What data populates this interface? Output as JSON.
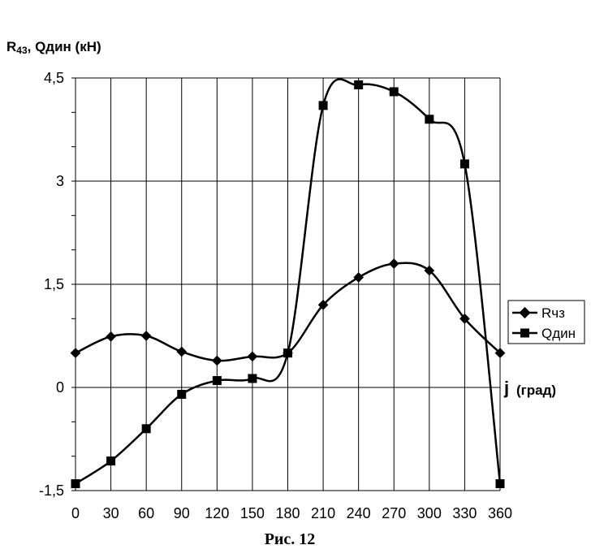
{
  "chart_data": {
    "type": "line",
    "ylabel_main": "R",
    "ylabel_sub": "43",
    "ylabel_rest": ", Qдин (кН)",
    "xlabel_symbol": "j",
    "xlabel_unit": "(град)",
    "caption": "Рис. 12",
    "x": [
      0,
      30,
      60,
      90,
      120,
      150,
      180,
      210,
      240,
      270,
      300,
      330,
      360
    ],
    "x_tick_labels": [
      "0",
      "30",
      "60",
      "90",
      "120",
      "150",
      "180",
      "210",
      "240",
      "270",
      "300",
      "330",
      "360"
    ],
    "y_ticks": [
      -1.5,
      0,
      1.5,
      3,
      4.5
    ],
    "y_tick_labels": [
      "-1,5",
      "0",
      "1,5",
      "3",
      "4,5"
    ],
    "xlim": [
      0,
      360
    ],
    "ylim": [
      -1.5,
      4.5
    ],
    "grid": true,
    "legend_position": "right",
    "series": [
      {
        "name": "Rчз",
        "marker": "diamond",
        "color": "#000000",
        "values": [
          0.5,
          0.74,
          0.75,
          0.52,
          0.39,
          0.45,
          0.5,
          1.2,
          1.6,
          1.8,
          1.7,
          1.0,
          0.5
        ]
      },
      {
        "name": "Qдин",
        "marker": "square",
        "color": "#000000",
        "values": [
          -1.4,
          -1.07,
          -0.6,
          -0.1,
          0.1,
          0.13,
          0.5,
          4.1,
          4.4,
          4.3,
          3.9,
          3.25,
          -1.4
        ]
      }
    ]
  }
}
